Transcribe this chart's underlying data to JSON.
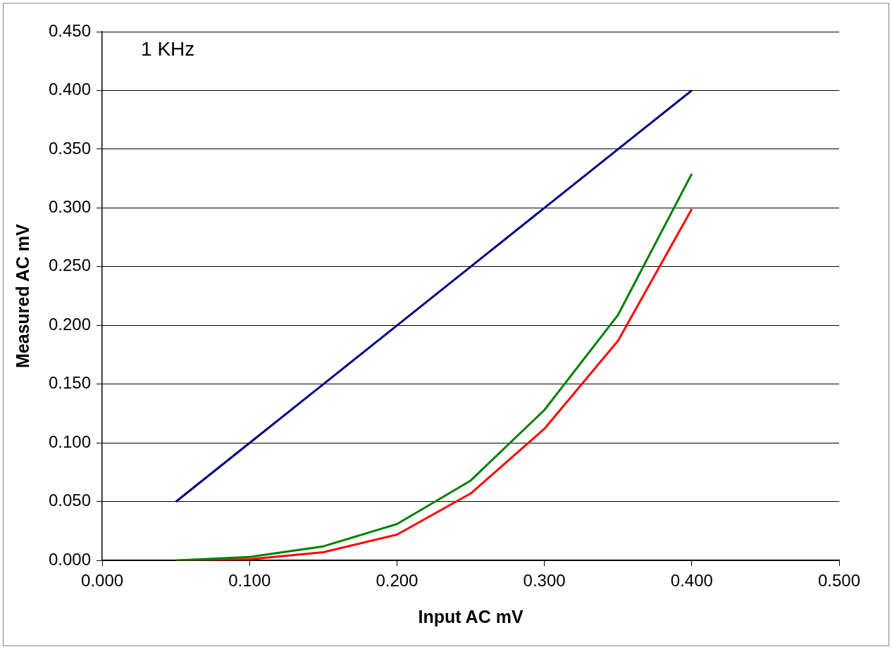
{
  "chart_data": {
    "type": "line",
    "xlabel": "Input AC mV",
    "ylabel": "Measured AC mV",
    "annotations": [
      "1 KHz"
    ],
    "x": [
      0.05,
      0.1,
      0.15,
      0.2,
      0.25,
      0.3,
      0.35,
      0.4
    ],
    "series": [
      {
        "color": "#000080",
        "values": [
          0.05,
          0.1,
          0.15,
          0.2,
          0.25,
          0.3,
          0.35,
          0.4
        ]
      },
      {
        "color": "#008000",
        "values": [
          0.0,
          0.003,
          0.012,
          0.031,
          0.068,
          0.128,
          0.209,
          0.329
        ]
      },
      {
        "color": "#ff0000",
        "values": [
          0.0,
          0.001,
          0.007,
          0.022,
          0.057,
          0.112,
          0.187,
          0.299
        ]
      }
    ],
    "xlim": [
      0,
      0.5
    ],
    "xticks": [
      {
        "value": 0,
        "label": "0.000"
      },
      {
        "value": 0.1,
        "label": "0.100"
      },
      {
        "value": 0.2,
        "label": "0.200"
      },
      {
        "value": 0.3,
        "label": "0.300"
      },
      {
        "value": 0.4,
        "label": "0.400"
      },
      {
        "value": 0.5,
        "label": "0.500"
      }
    ],
    "ylim": [
      0,
      0.45
    ],
    "yticks": [
      {
        "value": 0,
        "label": "0.000"
      },
      {
        "value": 0.05,
        "label": "0.050"
      },
      {
        "value": 0.1,
        "label": "0.100"
      },
      {
        "value": 0.15,
        "label": "0.150"
      },
      {
        "value": 0.2,
        "label": "0.200"
      },
      {
        "value": 0.25,
        "label": "0.250"
      },
      {
        "value": 0.3,
        "label": "0.300"
      },
      {
        "value": 0.35,
        "label": "0.350"
      },
      {
        "value": 0.4,
        "label": "0.400"
      },
      {
        "value": 0.45,
        "label": "0.450"
      }
    ],
    "grid": "y",
    "legend": false,
    "marker": "none",
    "line_style": "solid"
  }
}
